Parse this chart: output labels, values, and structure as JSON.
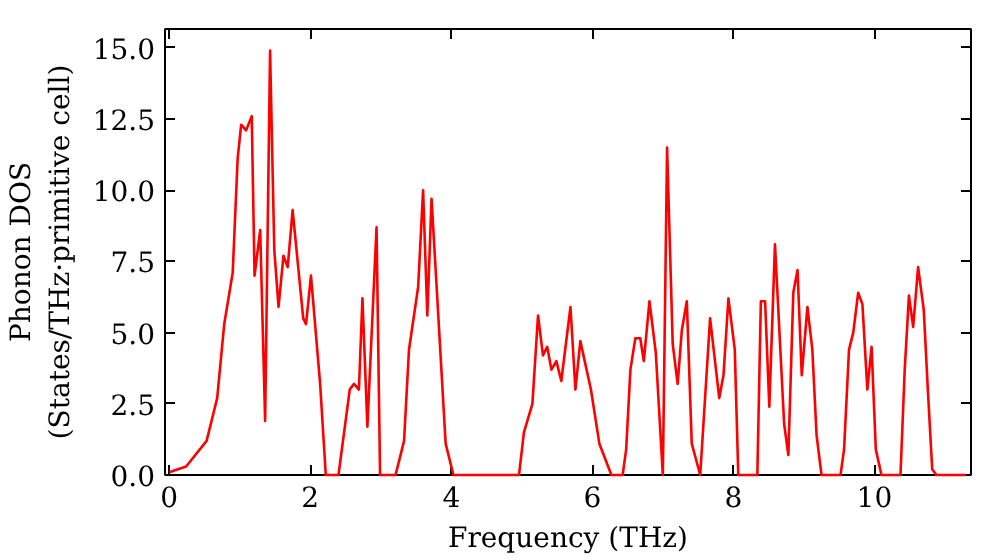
{
  "chart_data": {
    "type": "line",
    "xlabel": "Frequency (THz)",
    "ylabel": "Phonon DOS\n(States/THz·primitive cell)",
    "x": [
      0.0,
      0.24,
      0.53,
      0.68,
      0.78,
      0.9,
      0.97,
      1.02,
      1.09,
      1.17,
      1.21,
      1.29,
      1.36,
      1.43,
      1.49,
      1.55,
      1.62,
      1.68,
      1.75,
      1.9,
      1.94,
      2.01,
      2.14,
      2.22,
      2.4,
      2.56,
      2.62,
      2.69,
      2.74,
      2.81,
      2.94,
      2.99,
      3.21,
      3.33,
      3.4,
      3.53,
      3.6,
      3.66,
      3.72,
      3.92,
      4.03,
      4.96,
      5.03,
      5.15,
      5.23,
      5.3,
      5.36,
      5.42,
      5.49,
      5.56,
      5.69,
      5.76,
      5.83,
      5.98,
      6.1,
      6.27,
      6.43,
      6.48,
      6.54,
      6.61,
      6.68,
      6.73,
      6.81,
      6.9,
      7.0,
      7.06,
      7.14,
      7.21,
      7.27,
      7.34,
      7.41,
      7.53,
      7.67,
      7.8,
      7.86,
      7.93,
      8.02,
      8.07,
      8.34,
      8.39,
      8.45,
      8.51,
      8.59,
      8.72,
      8.78,
      8.85,
      8.91,
      8.97,
      9.05,
      9.12,
      9.18,
      9.25,
      9.52,
      9.57,
      9.64,
      9.7,
      9.77,
      9.83,
      9.9,
      9.96,
      10.02,
      10.1,
      10.37,
      10.43,
      10.49,
      10.55,
      10.62,
      10.7,
      10.76,
      10.82,
      10.88,
      11.3
    ],
    "series": [
      {
        "color": "#ff0000",
        "values": [
          0.1,
          0.3,
          1.2,
          2.7,
          5.3,
          7.1,
          11.1,
          12.3,
          12.1,
          12.6,
          7.0,
          8.6,
          1.9,
          14.9,
          7.9,
          5.9,
          7.7,
          7.3,
          9.3,
          5.5,
          5.3,
          7.0,
          3.2,
          0,
          0,
          3.0,
          3.2,
          3.0,
          6.2,
          1.7,
          8.7,
          0,
          0,
          1.2,
          4.4,
          6.6,
          10.0,
          5.6,
          9.7,
          1.1,
          0,
          0,
          1.5,
          2.5,
          5.6,
          4.2,
          4.5,
          3.7,
          4.0,
          3.3,
          5.9,
          3.0,
          4.7,
          3.0,
          1.1,
          0,
          0,
          0.9,
          3.7,
          4.8,
          4.8,
          4.0,
          6.1,
          4.3,
          0,
          11.5,
          4.6,
          3.2,
          5.1,
          6.1,
          1.1,
          0,
          5.5,
          2.7,
          3.5,
          6.2,
          4.4,
          0,
          0,
          6.1,
          6.1,
          2.4,
          8.1,
          1.8,
          0.7,
          6.4,
          7.2,
          3.5,
          5.9,
          4.4,
          1.4,
          0,
          0,
          0.9,
          4.4,
          5.0,
          6.4,
          6.0,
          3.0,
          4.5,
          0.9,
          0,
          0,
          3.7,
          6.3,
          5.2,
          7.3,
          5.8,
          2.9,
          0.2,
          0,
          0
        ]
      }
    ],
    "xlim": [
      -0.06,
      11.37
    ],
    "ylim": [
      0,
      15.66
    ],
    "xticks": [
      0,
      2,
      4,
      6,
      8,
      10
    ],
    "yticks": [
      {
        "value": 0,
        "label": "0.0"
      },
      2.5,
      {
        "value": 5,
        "label": "5.0"
      },
      7.5,
      {
        "value": 10,
        "label": "10.0"
      },
      12.5,
      {
        "value": 15,
        "label": "15.0"
      }
    ],
    "grid": false,
    "marker": "none",
    "line_style": "solid"
  }
}
